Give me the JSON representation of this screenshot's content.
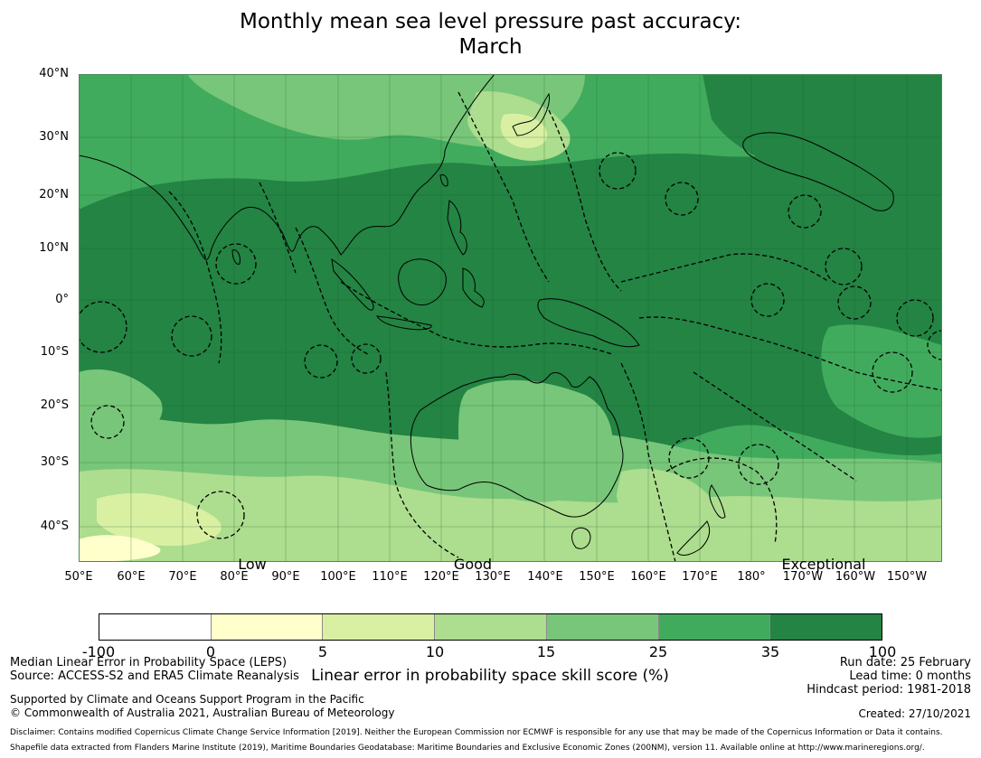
{
  "title_line1": "Monthly mean sea level pressure past accuracy:",
  "title_line2": "March",
  "lat_labels": [
    "40°N",
    "30°N",
    "20°N",
    "10°N",
    "0°",
    "10°S",
    "20°S",
    "30°S",
    "40°S"
  ],
  "lon_labels": [
    "50°E",
    "60°E",
    "70°E",
    "80°E",
    "90°E",
    "100°E",
    "110°E",
    "120°E",
    "130°E",
    "140°E",
    "150°E",
    "160°E",
    "170°E",
    "180°",
    "170°W",
    "160°W",
    "150°W"
  ],
  "qualitative": {
    "low": "Low",
    "good": "Good",
    "exceptional": "Exceptional"
  },
  "colorbar": {
    "ticks": [
      "-100",
      "0",
      "5",
      "10",
      "15",
      "25",
      "35",
      "100"
    ],
    "colors": [
      "#ffffff",
      "#ffffcc",
      "#d9f0a3",
      "#addd8e",
      "#78c679",
      "#41ab5d",
      "#238443"
    ],
    "label": "Linear error in probability space skill score (%)"
  },
  "left_info": {
    "line1": "Median Linear Error in Probability Space (LEPS)",
    "line2": "Source: ACCESS-S2 and ERA5 Climate Reanalysis",
    "line3": "Supported by Climate and Oceans Support Program in the Pacific",
    "line4": "© Commonwealth of Australia 2021, Australian Bureau of Meteorology"
  },
  "right_info": {
    "run_date": "Run date: 25 February",
    "lead_time": "Lead time: 0 months",
    "hindcast": "Hindcast period: 1981-2018",
    "created": "Created: 27/10/2021"
  },
  "disclaimer1": "Disclaimer: Contains modified Copernicus Climate Change Service Information [2019]. Neither the European Commission nor ECMWF is responsible for any use that may be made of the Copernicus Information or Data it contains.",
  "disclaimer2": "Shapefile data extracted from Flanders Marine Institute (2019), Maritime Boundaries Geodatabase: Maritime Boundaries and Exclusive Economic Zones (200NM), version 11. Available online at http://www.marineregions.org/."
}
